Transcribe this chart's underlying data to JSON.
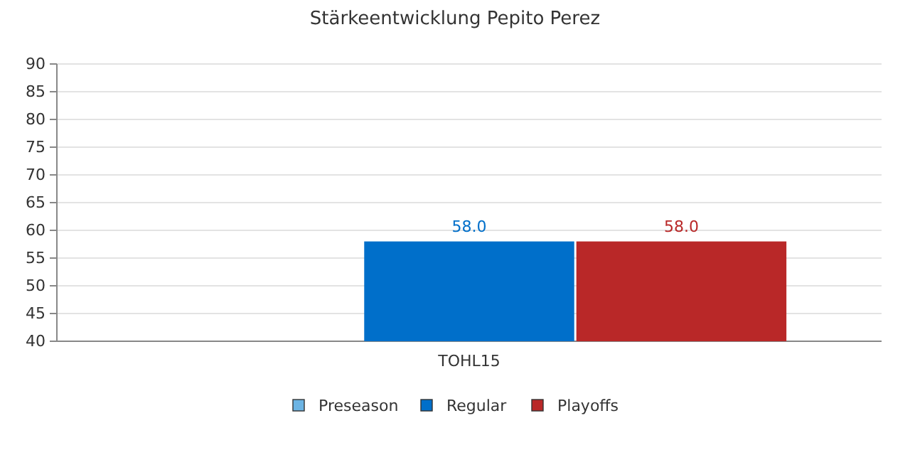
{
  "chart_data": {
    "type": "bar",
    "title": "Stärkeentwicklung Pepito Perez",
    "categories": [
      "TOHL15"
    ],
    "series": [
      {
        "name": "Preseason",
        "color": "#6cb4e4",
        "values": [
          null
        ]
      },
      {
        "name": "Regular",
        "color": "#006fca",
        "values": [
          58.0
        ],
        "value_labels": [
          "58.0"
        ]
      },
      {
        "name": "Playoffs",
        "color": "#b92828",
        "values": [
          58.0
        ],
        "value_labels": [
          "58.0"
        ]
      }
    ],
    "ylim": [
      40,
      90
    ],
    "yticks": [
      40,
      45,
      50,
      55,
      60,
      65,
      70,
      75,
      80,
      85,
      90
    ],
    "grid": "y",
    "legend": "bottom"
  }
}
